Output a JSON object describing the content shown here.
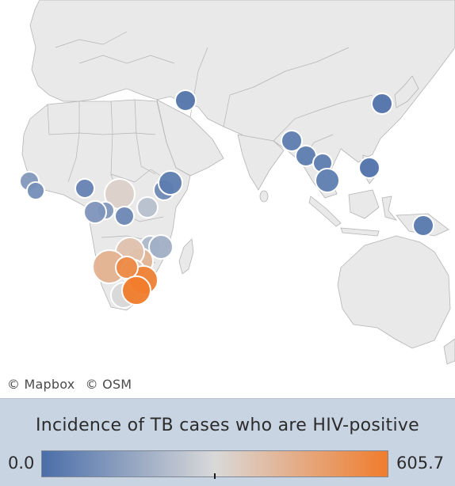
{
  "attribution": [
    "© Mapbox",
    "© OSM"
  ],
  "legend": {
    "title": "Incidence of TB cases who are HIV-positive",
    "min_label": "0.0",
    "max_label": "605.7",
    "min_value": 0.0,
    "max_value": 605.7,
    "color_low": "#4a6ea9",
    "color_mid": "#d9d9d9",
    "color_high": "#f07c2c",
    "marker_value": 305
  },
  "colors": {
    "land": "#e9e9e9",
    "water": "#ffffff",
    "border": "#b4b4b4",
    "bubble_stroke": "#ffffff"
  },
  "map_points": [
    {
      "location": "Turkey",
      "value": 20
    },
    {
      "location": "Japan",
      "value": 15
    },
    {
      "location": "Myanmar",
      "value": 40
    },
    {
      "location": "Laos",
      "value": 40
    },
    {
      "location": "Vietnam",
      "value": 40
    },
    {
      "location": "Cambodia",
      "value": 45
    },
    {
      "location": "Philippines",
      "value": 15
    },
    {
      "location": "Papua New Guinea",
      "value": 30
    },
    {
      "location": "Guinea",
      "value": 120
    },
    {
      "location": "Sierra Leone",
      "value": 90
    },
    {
      "location": "Nigeria",
      "value": 60
    },
    {
      "location": "Central African Republic",
      "value": 330
    },
    {
      "location": "Cameroon",
      "value": 120
    },
    {
      "location": "Gabon",
      "value": 110
    },
    {
      "location": "Congo",
      "value": 75
    },
    {
      "location": "Kenya",
      "value": 80
    },
    {
      "location": "Ethiopia",
      "value": 40
    },
    {
      "location": "Tanzania",
      "value": 230
    },
    {
      "location": "Malawi",
      "value": 210
    },
    {
      "location": "Mozambique",
      "value": 185
    },
    {
      "location": "Angola",
      "value": 420
    },
    {
      "location": "Zambia",
      "value": 380
    },
    {
      "location": "Zimbabwe",
      "value": 430
    },
    {
      "location": "Namibia",
      "value": 300
    },
    {
      "location": "Botswana",
      "value": 360
    },
    {
      "location": "South Africa",
      "value": 590
    },
    {
      "location": "Lesotho",
      "value": 560
    },
    {
      "location": "Eswatini",
      "value": 605.7
    }
  ]
}
